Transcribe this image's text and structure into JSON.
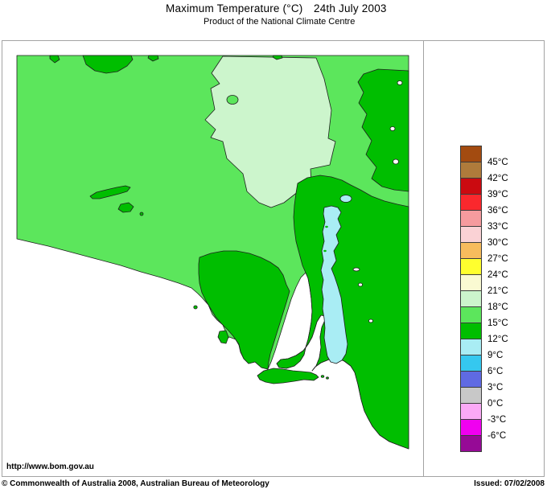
{
  "header": {
    "title": "Maximum Temperature (°C)",
    "date": "24th July 2003",
    "subtitle": "Product of the National Climate Centre"
  },
  "map_panel": {
    "url_label": "http://www.bom.gov.au",
    "region": "South Australia",
    "colors": {
      "temp_18_21": "#CCF5CC",
      "temp_15_18": "#5CE65C",
      "temp_12_15": "#00BE00",
      "temp_9_12": "#A9EDF4",
      "coastline": "#1F1F1F",
      "ocean": "#FFFFFF"
    }
  },
  "legend": {
    "entries": [
      {
        "color": "#A34B10",
        "label": "45°C"
      },
      {
        "color": "#AF7B3B",
        "label": "42°C"
      },
      {
        "color": "#CB0A10",
        "label": "39°C"
      },
      {
        "color": "#FA282D",
        "label": "36°C"
      },
      {
        "color": "#F59B9E",
        "label": "33°C"
      },
      {
        "color": "#FAD2D5",
        "label": "30°C"
      },
      {
        "color": "#F7BC5D",
        "label": "27°C"
      },
      {
        "color": "#FFFF2E",
        "label": "24°C"
      },
      {
        "color": "#FAFAD2",
        "label": "21°C"
      },
      {
        "color": "#CCF5CC",
        "label": "18°C"
      },
      {
        "color": "#5CE65C",
        "label": "15°C"
      },
      {
        "color": "#00BE00",
        "label": "12°C"
      },
      {
        "color": "#A9EDF4",
        "label": "9°C"
      },
      {
        "color": "#35C8EF",
        "label": "6°C"
      },
      {
        "color": "#5F6AE3",
        "label": "3°C"
      },
      {
        "color": "#C8C8C8",
        "label": "0°C"
      },
      {
        "color": "#FBA9F6",
        "label": "-3°C"
      },
      {
        "color": "#F000F0",
        "label": "-6°C"
      },
      {
        "color": "#960A96",
        "label": ""
      }
    ]
  },
  "footer": {
    "copyright": "© Commonwealth of Australia 2008, Australian Bureau of Meteorology",
    "issued": "Issued: 07/02/2008"
  }
}
